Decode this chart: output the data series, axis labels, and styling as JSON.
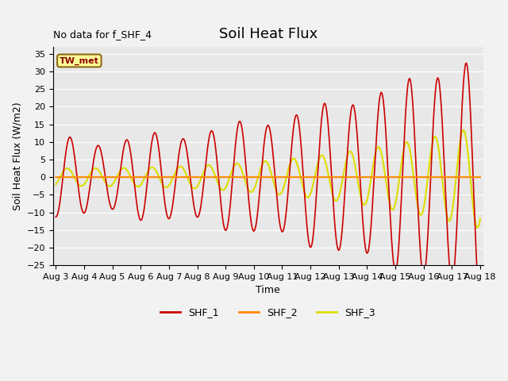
{
  "title": "Soil Heat Flux",
  "ylabel": "Soil Heat Flux (W/m2)",
  "xlabel": "Time",
  "annotation_text": "No data for f_SHF_4",
  "box_label": "TW_met",
  "ylim": [
    -25,
    37
  ],
  "yticks": [
    -25,
    -20,
    -15,
    -10,
    -5,
    0,
    5,
    10,
    15,
    20,
    25,
    30,
    35
  ],
  "n_points": 3000,
  "shf1_color": "#cc0000",
  "shf2_color": "#ff8800",
  "shf3_color": "#dddd00",
  "bg_color": "#e8e8e8",
  "fig_color": "#f2f2f2",
  "legend_entries": [
    "SHF_1",
    "SHF_2",
    "SHF_3"
  ],
  "title_fontsize": 13,
  "label_fontsize": 9,
  "tick_fontsize": 8,
  "legend_fontsize": 9
}
